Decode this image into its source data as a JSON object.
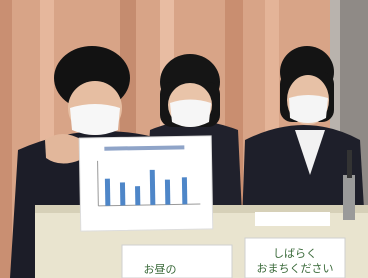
{
  "signs": [
    {
      "lines": [
        "お昼の"
      ]
    },
    {
      "lines": [
        "しばらく",
        "おまちください"
      ]
    }
  ]
}
